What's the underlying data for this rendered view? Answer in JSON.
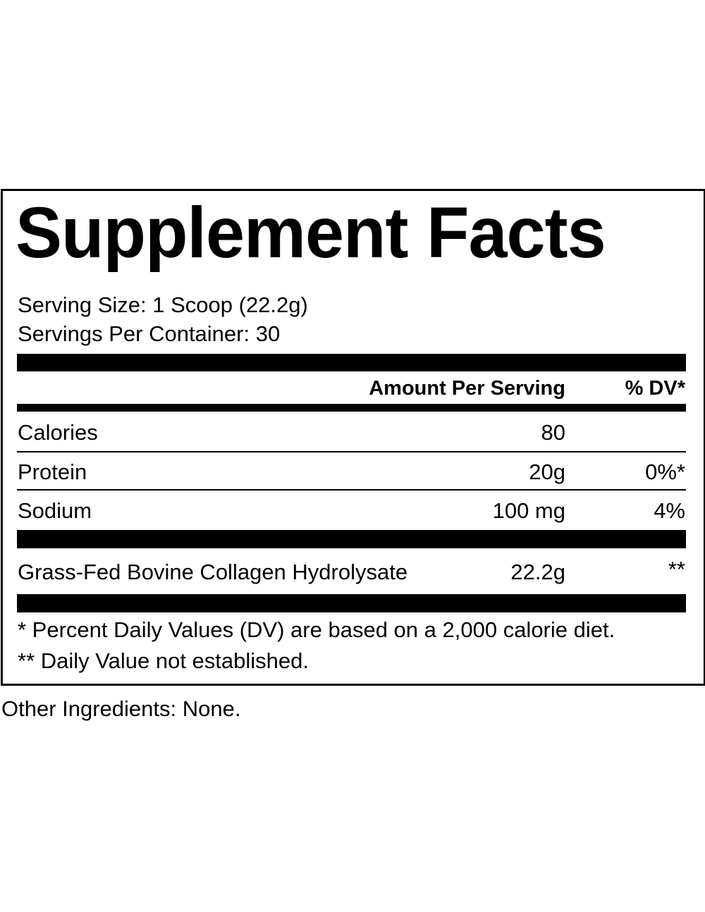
{
  "title": "Supplement Facts",
  "serving_size": "Serving Size: 1 Scoop (22.2g)",
  "servings_per_container": "Servings Per Container: 30",
  "header": {
    "amount": "Amount Per Serving",
    "dv": "% DV*"
  },
  "rows": [
    {
      "name": "Calories",
      "amount": "80",
      "dv": ""
    },
    {
      "name": "Protein",
      "amount": "20g",
      "dv": "0%*"
    },
    {
      "name": "Sodium",
      "amount": "100 mg",
      "dv": "4%"
    },
    {
      "name": "Grass-Fed Bovine Collagen Hydrolysate",
      "amount": "22.2g",
      "dv": "**"
    }
  ],
  "footnotes": [
    "* Percent Daily Values (DV) are based on a 2,000 calorie diet.",
    "** Daily Value not established."
  ],
  "other_ingredients": "Other Ingredients: None."
}
